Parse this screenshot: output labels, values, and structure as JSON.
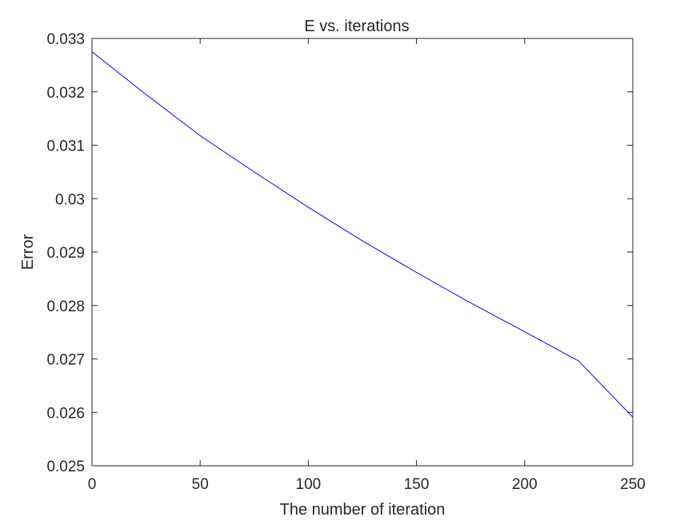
{
  "chart_data": {
    "type": "line",
    "title": "E vs. iterations",
    "xlabel": "The number of iteration",
    "ylabel": "Error",
    "xlim": [
      0,
      250
    ],
    "ylim": [
      0.025,
      0.033
    ],
    "xticks": [
      0,
      50,
      100,
      150,
      200,
      250
    ],
    "xtick_labels": [
      "0",
      "50",
      "100",
      "150",
      "200",
      "250"
    ],
    "yticks": [
      0.025,
      0.026,
      0.027,
      0.028,
      0.029,
      0.03,
      0.031,
      0.032,
      0.033
    ],
    "ytick_labels": [
      "0.025",
      "0.026",
      "0.027",
      "0.028",
      "0.029",
      "0.03",
      "0.031",
      "0.032",
      "0.033"
    ],
    "grid": false,
    "series": [
      {
        "color": "#0000ff",
        "x": [
          0,
          25,
          50,
          75,
          100,
          125,
          150,
          175,
          200,
          225,
          250
        ],
        "y": [
          0.03275,
          0.03195,
          0.03118,
          0.0305,
          0.02984,
          0.02921,
          0.02862,
          0.02805,
          0.02751,
          0.02696,
          0.02591
        ]
      }
    ]
  }
}
